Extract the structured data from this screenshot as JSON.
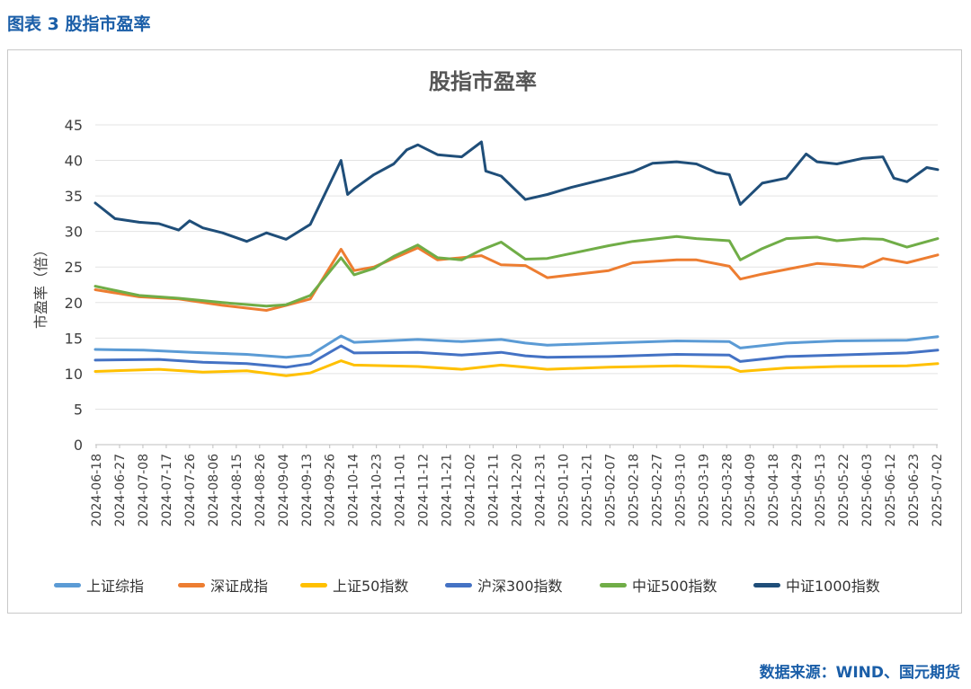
{
  "caption": "图表 3 股指市盈率",
  "source": "数据来源：WIND、国元期货",
  "chart_data": {
    "type": "line",
    "title": "股指市盈率",
    "ylabel": "市盈率（倍）",
    "xlabel": "",
    "ylim": [
      0,
      45
    ],
    "yticks": [
      0,
      5,
      10,
      15,
      20,
      25,
      30,
      35,
      40,
      45
    ],
    "grid": "horizontal",
    "legend_position": "bottom",
    "date_range": [
      "2024-06-18",
      "2025-07-07"
    ],
    "x_tick_labels": [
      "2024-06-18",
      "2024-06-27",
      "2024-07-08",
      "2024-07-17",
      "2024-07-26",
      "2024-08-06",
      "2024-08-15",
      "2024-08-26",
      "2024-09-04",
      "2024-09-13",
      "2024-09-26",
      "2024-10-14",
      "2024-10-23",
      "2024-11-01",
      "2024-11-12",
      "2024-11-21",
      "2024-12-02",
      "2024-12-11",
      "2024-12-20",
      "2024-12-31",
      "2025-01-10",
      "2025-01-21",
      "2025-02-07",
      "2025-02-18",
      "2025-02-27",
      "2025-03-10",
      "2025-03-19",
      "2025-03-28",
      "2025-04-09",
      "2025-04-18",
      "2025-04-29",
      "2025-05-13",
      "2025-05-22",
      "2025-06-03",
      "2025-06-12",
      "2025-06-23",
      "2025-07-02"
    ],
    "series": [
      {
        "name": "上证综指",
        "color": "#5b9bd5",
        "points": [
          [
            "2024-06-18",
            13.4
          ],
          [
            "2024-07-10",
            13.3
          ],
          [
            "2024-08-01",
            13.0
          ],
          [
            "2024-08-26",
            12.7
          ],
          [
            "2024-09-13",
            12.3
          ],
          [
            "2024-09-24",
            12.6
          ],
          [
            "2024-10-08",
            15.3
          ],
          [
            "2024-10-14",
            14.4
          ],
          [
            "2024-11-12",
            14.8
          ],
          [
            "2024-12-02",
            14.5
          ],
          [
            "2024-12-20",
            14.8
          ],
          [
            "2024-12-31",
            14.3
          ],
          [
            "2025-01-10",
            14.0
          ],
          [
            "2025-02-07",
            14.3
          ],
          [
            "2025-03-10",
            14.6
          ],
          [
            "2025-04-03",
            14.5
          ],
          [
            "2025-04-08",
            13.6
          ],
          [
            "2025-04-29",
            14.3
          ],
          [
            "2025-05-22",
            14.6
          ],
          [
            "2025-06-23",
            14.7
          ],
          [
            "2025-07-07",
            15.2
          ]
        ]
      },
      {
        "name": "深证成指",
        "color": "#ed7d31",
        "points": [
          [
            "2024-06-18",
            21.8
          ],
          [
            "2024-07-08",
            20.8
          ],
          [
            "2024-07-26",
            20.5
          ],
          [
            "2024-08-15",
            19.6
          ],
          [
            "2024-09-04",
            18.9
          ],
          [
            "2024-09-13",
            19.6
          ],
          [
            "2024-09-24",
            20.5
          ],
          [
            "2024-10-08",
            27.5
          ],
          [
            "2024-10-14",
            24.5
          ],
          [
            "2024-10-23",
            25.0
          ],
          [
            "2024-11-12",
            27.7
          ],
          [
            "2024-11-21",
            26.0
          ],
          [
            "2024-12-02",
            26.3
          ],
          [
            "2024-12-11",
            26.6
          ],
          [
            "2024-12-20",
            25.3
          ],
          [
            "2024-12-31",
            25.2
          ],
          [
            "2025-01-10",
            23.5
          ],
          [
            "2025-02-07",
            24.5
          ],
          [
            "2025-02-18",
            25.6
          ],
          [
            "2025-03-10",
            26.0
          ],
          [
            "2025-03-19",
            26.0
          ],
          [
            "2025-04-03",
            25.1
          ],
          [
            "2025-04-08",
            23.3
          ],
          [
            "2025-04-18",
            24.0
          ],
          [
            "2025-05-13",
            25.5
          ],
          [
            "2025-05-22",
            25.3
          ],
          [
            "2025-06-03",
            25.0
          ],
          [
            "2025-06-12",
            26.2
          ],
          [
            "2025-06-23",
            25.6
          ],
          [
            "2025-07-07",
            26.7
          ]
        ]
      },
      {
        "name": "上证50指数",
        "color": "#ffc000",
        "points": [
          [
            "2024-06-18",
            10.3
          ],
          [
            "2024-07-17",
            10.6
          ],
          [
            "2024-08-06",
            10.2
          ],
          [
            "2024-08-26",
            10.4
          ],
          [
            "2024-09-13",
            9.7
          ],
          [
            "2024-09-24",
            10.1
          ],
          [
            "2024-10-08",
            11.8
          ],
          [
            "2024-10-14",
            11.2
          ],
          [
            "2024-11-12",
            11.0
          ],
          [
            "2024-12-02",
            10.6
          ],
          [
            "2024-12-20",
            11.2
          ],
          [
            "2024-12-31",
            10.9
          ],
          [
            "2025-01-10",
            10.6
          ],
          [
            "2025-02-07",
            10.9
          ],
          [
            "2025-03-10",
            11.1
          ],
          [
            "2025-04-03",
            10.9
          ],
          [
            "2025-04-08",
            10.3
          ],
          [
            "2025-04-29",
            10.8
          ],
          [
            "2025-05-22",
            11.0
          ],
          [
            "2025-06-23",
            11.1
          ],
          [
            "2025-07-07",
            11.4
          ]
        ]
      },
      {
        "name": "沪深300指数",
        "color": "#4472c4",
        "points": [
          [
            "2024-06-18",
            11.9
          ],
          [
            "2024-07-17",
            12.0
          ],
          [
            "2024-08-06",
            11.6
          ],
          [
            "2024-08-26",
            11.4
          ],
          [
            "2024-09-13",
            10.9
          ],
          [
            "2024-09-24",
            11.4
          ],
          [
            "2024-10-08",
            13.9
          ],
          [
            "2024-10-14",
            12.9
          ],
          [
            "2024-11-12",
            13.0
          ],
          [
            "2024-12-02",
            12.6
          ],
          [
            "2024-12-20",
            13.0
          ],
          [
            "2024-12-31",
            12.5
          ],
          [
            "2025-01-10",
            12.3
          ],
          [
            "2025-02-07",
            12.4
          ],
          [
            "2025-03-10",
            12.7
          ],
          [
            "2025-04-03",
            12.6
          ],
          [
            "2025-04-08",
            11.7
          ],
          [
            "2025-04-29",
            12.4
          ],
          [
            "2025-05-22",
            12.6
          ],
          [
            "2025-06-23",
            12.9
          ],
          [
            "2025-07-07",
            13.3
          ]
        ]
      },
      {
        "name": "中证500指数",
        "color": "#70ad47",
        "points": [
          [
            "2024-06-18",
            22.3
          ],
          [
            "2024-07-08",
            21.0
          ],
          [
            "2024-07-26",
            20.6
          ],
          [
            "2024-08-15",
            20.0
          ],
          [
            "2024-09-04",
            19.5
          ],
          [
            "2024-09-13",
            19.7
          ],
          [
            "2024-09-24",
            21.0
          ],
          [
            "2024-10-08",
            26.3
          ],
          [
            "2024-10-14",
            23.9
          ],
          [
            "2024-10-23",
            24.8
          ],
          [
            "2024-11-01",
            26.5
          ],
          [
            "2024-11-12",
            28.1
          ],
          [
            "2024-11-21",
            26.3
          ],
          [
            "2024-12-02",
            26.0
          ],
          [
            "2024-12-11",
            27.4
          ],
          [
            "2024-12-20",
            28.5
          ],
          [
            "2024-12-31",
            26.1
          ],
          [
            "2025-01-10",
            26.2
          ],
          [
            "2025-02-07",
            28.0
          ],
          [
            "2025-02-18",
            28.6
          ],
          [
            "2025-03-10",
            29.3
          ],
          [
            "2025-03-19",
            29.0
          ],
          [
            "2025-04-03",
            28.7
          ],
          [
            "2025-04-08",
            26.0
          ],
          [
            "2025-04-18",
            27.6
          ],
          [
            "2025-04-29",
            29.0
          ],
          [
            "2025-05-13",
            29.2
          ],
          [
            "2025-05-22",
            28.7
          ],
          [
            "2025-06-03",
            29.0
          ],
          [
            "2025-06-12",
            28.9
          ],
          [
            "2025-06-23",
            27.8
          ],
          [
            "2025-07-07",
            29.0
          ]
        ]
      },
      {
        "name": "中证1000指数",
        "color": "#1f4e79",
        "points": [
          [
            "2024-06-18",
            34.0
          ],
          [
            "2024-06-27",
            31.8
          ],
          [
            "2024-07-08",
            31.3
          ],
          [
            "2024-07-17",
            31.1
          ],
          [
            "2024-07-26",
            30.2
          ],
          [
            "2024-07-31",
            31.5
          ],
          [
            "2024-08-06",
            30.5
          ],
          [
            "2024-08-15",
            29.8
          ],
          [
            "2024-08-26",
            28.6
          ],
          [
            "2024-09-04",
            29.8
          ],
          [
            "2024-09-13",
            28.9
          ],
          [
            "2024-09-24",
            31.0
          ],
          [
            "2024-10-08",
            40.0
          ],
          [
            "2024-10-11",
            35.2
          ],
          [
            "2024-10-14",
            36.0
          ],
          [
            "2024-10-23",
            38.0
          ],
          [
            "2024-11-01",
            39.5
          ],
          [
            "2024-11-07",
            41.5
          ],
          [
            "2024-11-12",
            42.2
          ],
          [
            "2024-11-21",
            40.8
          ],
          [
            "2024-12-02",
            40.5
          ],
          [
            "2024-12-11",
            42.6
          ],
          [
            "2024-12-13",
            38.5
          ],
          [
            "2024-12-20",
            37.8
          ],
          [
            "2024-12-31",
            34.5
          ],
          [
            "2025-01-10",
            35.2
          ],
          [
            "2025-01-21",
            36.2
          ],
          [
            "2025-02-07",
            37.5
          ],
          [
            "2025-02-18",
            38.4
          ],
          [
            "2025-02-27",
            39.6
          ],
          [
            "2025-03-10",
            39.8
          ],
          [
            "2025-03-19",
            39.5
          ],
          [
            "2025-03-28",
            38.3
          ],
          [
            "2025-04-03",
            38.0
          ],
          [
            "2025-04-08",
            33.8
          ],
          [
            "2025-04-18",
            36.8
          ],
          [
            "2025-04-29",
            37.5
          ],
          [
            "2025-05-08",
            40.9
          ],
          [
            "2025-05-13",
            39.8
          ],
          [
            "2025-05-22",
            39.5
          ],
          [
            "2025-06-03",
            40.3
          ],
          [
            "2025-06-12",
            40.5
          ],
          [
            "2025-06-17",
            37.5
          ],
          [
            "2025-06-23",
            37.0
          ],
          [
            "2025-07-02",
            39.0
          ],
          [
            "2025-07-07",
            38.7
          ]
        ]
      }
    ]
  }
}
